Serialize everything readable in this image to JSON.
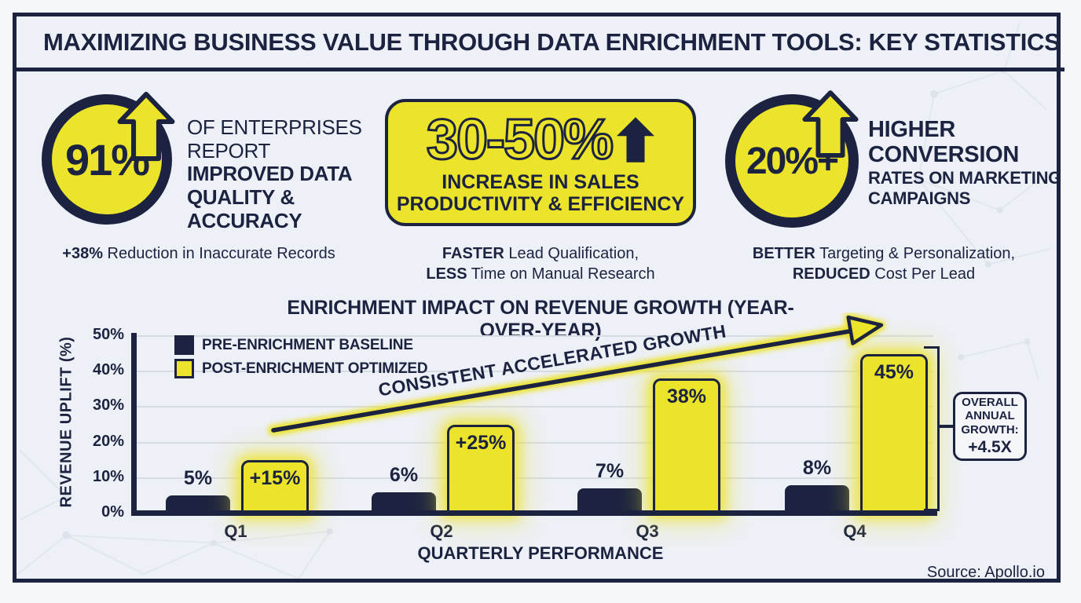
{
  "page": {
    "title": "MAXIMIZING BUSINESS VALUE THROUGH DATA ENRICHMENT TOOLS: KEY STATISTICS",
    "source": "Source: Apollo.io"
  },
  "stats": [
    {
      "value": "91%",
      "icon": "up-arrow",
      "headline_regular": "OF ENTERPRISES REPORT ",
      "headline_bold": "IMPROVED DATA QUALITY & ACCURACY",
      "caption": {
        "bold1": "+38%",
        "rest1": " Reduction in Inaccurate Records",
        "bold2": "",
        "rest2": ""
      }
    },
    {
      "value": "30-50%",
      "icon": "up-arrow",
      "headline": "INCREASE IN SALES\nPRODUCTIVITY & EFFICIENCY",
      "caption": {
        "bold1": "FASTER",
        "rest1": " Lead Qualification,",
        "bold2": "LESS",
        "rest2": " Time on Manual Research"
      }
    },
    {
      "value": "20%+",
      "icon": "up-arrow",
      "headline_primary": "HIGHER\nCONVERSION",
      "headline_secondary": "RATES ON MARKETING\nCAMPAIGNS",
      "caption": {
        "bold1": "BETTER",
        "rest1": " Targeting & Personalization,",
        "bold2": "REDUCED",
        "rest2": " Cost Per Lead"
      }
    }
  ],
  "chart_data": {
    "type": "bar",
    "title": "ENRICHMENT IMPACT ON REVENUE GROWTH (YEAR-OVER-YEAR)",
    "categories": [
      "Q1",
      "Q2",
      "Q3",
      "Q4"
    ],
    "series": [
      {
        "name": "PRE-ENRICHMENT BASELINE",
        "color": "#1c2340",
        "values": [
          5,
          6,
          7,
          8
        ],
        "labels": [
          "5%",
          "6%",
          "7%",
          "8%"
        ]
      },
      {
        "name": "POST-ENRICHMENT OPTIMIZED",
        "color": "#ece32b",
        "values": [
          15,
          25,
          38,
          45
        ],
        "labels": [
          "+15%",
          "+25%",
          "38%",
          "45%"
        ]
      }
    ],
    "xlabel": "QUARTERLY PERFORMANCE",
    "ylabel": "REVENUE UPLIFT (%)",
    "ylim": [
      0,
      50
    ],
    "yticks": [
      "0%",
      "10%",
      "20%",
      "30%",
      "40%",
      "50%"
    ],
    "grid": true,
    "legend_position": "top-left",
    "annotation": "CONSISTENT ACCELERATED GROWTH",
    "callout": {
      "line1": "OVERALL",
      "line2": "ANNUAL",
      "line3": "GROWTH:",
      "value": "+4.5X"
    }
  },
  "colors": {
    "navy": "#1c2340",
    "yellow": "#ece32b",
    "background": "#edf0f6",
    "grid": "#d7dbe4",
    "frame_border": "#1c2340"
  }
}
